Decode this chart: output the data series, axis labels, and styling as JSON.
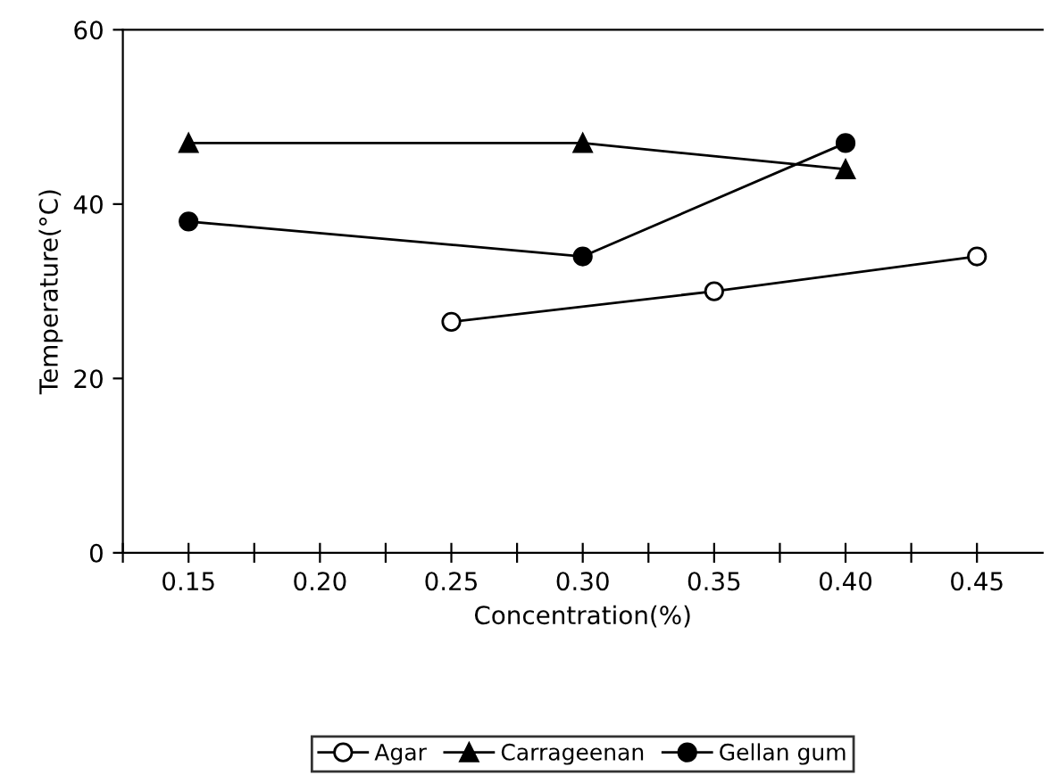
{
  "chart_data": {
    "type": "line",
    "xlabel": "Concentration(%)",
    "ylabel": "Temperature(°C)",
    "xlim": [
      0.125,
      0.475
    ],
    "ylim": [
      0,
      60
    ],
    "xticks": [
      {
        "value": 0.125,
        "label": null
      },
      0.15,
      {
        "value": 0.175,
        "label": null
      },
      {
        "value": 0.2,
        "label": "0.20"
      },
      {
        "value": 0.225,
        "label": null
      },
      0.25,
      {
        "value": 0.275,
        "label": null
      },
      {
        "value": 0.3,
        "label": "0.30"
      },
      {
        "value": 0.325,
        "label": null
      },
      0.35,
      {
        "value": 0.375,
        "label": null
      },
      {
        "value": 0.4,
        "label": "0.40"
      },
      {
        "value": 0.425,
        "label": null
      },
      0.45
    ],
    "yticks": [
      0,
      20,
      40,
      60
    ],
    "grid": false,
    "legend": "bottom",
    "line_style": "solid",
    "series": [
      {
        "name": "Agar",
        "color": "#000000",
        "marker": "circle",
        "x": [
          0.25,
          0.35,
          0.45
        ],
        "values": [
          26.5,
          30,
          34
        ]
      },
      {
        "name": "Carrageenan",
        "color": "#000000",
        "marker": "triangle",
        "x": [
          0.15,
          0.3,
          0.4
        ],
        "values": [
          47,
          47,
          44
        ]
      },
      {
        "name": "Gellan gum",
        "color": "#000000",
        "marker": "circle",
        "x": [
          0.15,
          0.3,
          0.4
        ],
        "values": [
          38,
          34,
          47
        ]
      }
    ]
  }
}
